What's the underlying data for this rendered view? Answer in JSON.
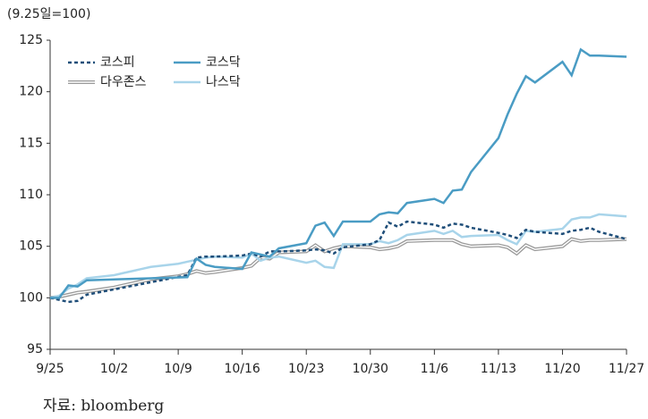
{
  "chart_data": {
    "type": "line",
    "unit_label": "(9.25일=100)",
    "source": "자료: bloomberg",
    "xlim": [
      0,
      63
    ],
    "xticks": [
      {
        "value": 0,
        "label": "9/25"
      },
      {
        "value": 7,
        "label": "10/2"
      },
      {
        "value": 14,
        "label": "10/9"
      },
      {
        "value": 21,
        "label": "10/16"
      },
      {
        "value": 28,
        "label": "10/23"
      },
      {
        "value": 35,
        "label": "10/30"
      },
      {
        "value": 42,
        "label": "11/6"
      },
      {
        "value": 49,
        "label": "11/13"
      },
      {
        "value": 56,
        "label": "11/20"
      },
      {
        "value": 63,
        "label": "11/27"
      }
    ],
    "ylim": [
      95,
      125
    ],
    "yticks": [
      95,
      100,
      105,
      110,
      115,
      120,
      125
    ],
    "series": [
      {
        "name": "코스피",
        "color": "#1f4e79",
        "style": "dotted",
        "x": [
          0,
          1,
          2,
          3,
          4,
          15,
          16,
          17,
          18,
          21,
          22,
          23,
          24,
          25,
          28,
          29,
          30,
          31,
          32,
          35,
          36,
          37,
          38,
          39,
          42,
          43,
          44,
          45,
          46,
          49,
          50,
          51,
          52,
          53,
          56,
          57,
          58,
          59,
          60,
          63
        ],
        "values": [
          100,
          99.8,
          99.6,
          99.7,
          100.3,
          102.2,
          103.9,
          104,
          104,
          104.1,
          104.3,
          104,
          104.5,
          104.5,
          104.6,
          104.7,
          104.6,
          104.3,
          104.9,
          105.2,
          105.6,
          107.3,
          106.9,
          107.4,
          107.1,
          106.8,
          107.2,
          107.1,
          106.8,
          106.3,
          106.1,
          105.8,
          106.6,
          106.4,
          106.2,
          106.5,
          106.6,
          106.8,
          106.4,
          105.7
        ]
      },
      {
        "name": "다우존스",
        "color": "#999999",
        "style": "double",
        "x": [
          0,
          1,
          2,
          3,
          4,
          7,
          8,
          9,
          10,
          11,
          14,
          15,
          16,
          17,
          18,
          21,
          22,
          23,
          24,
          25,
          28,
          29,
          30,
          31,
          32,
          35,
          36,
          37,
          38,
          39,
          42,
          43,
          44,
          45,
          46,
          49,
          50,
          51,
          52,
          53,
          56,
          57,
          58,
          59,
          60,
          63
        ],
        "values": [
          100,
          100.1,
          100.3,
          100.5,
          100.6,
          101,
          101.2,
          101.4,
          101.6,
          101.8,
          102.1,
          102.3,
          102.6,
          102.4,
          102.5,
          102.9,
          103.1,
          103.9,
          103.8,
          104.4,
          104.5,
          105.1,
          104.5,
          104.8,
          105,
          104.9,
          104.7,
          104.8,
          105,
          105.5,
          105.6,
          105.6,
          105.6,
          105.2,
          105,
          105.1,
          104.9,
          104.3,
          105.1,
          104.7,
          105,
          105.7,
          105.5,
          105.6,
          105.6,
          105.7
        ]
      },
      {
        "name": "코스닥",
        "color": "#4a9cc4",
        "style": "solid",
        "x": [
          0,
          1,
          2,
          3,
          4,
          15,
          16,
          17,
          18,
          21,
          22,
          23,
          24,
          25,
          28,
          29,
          30,
          31,
          32,
          35,
          36,
          37,
          38,
          39,
          42,
          43,
          44,
          45,
          46,
          49,
          50,
          51,
          52,
          53,
          56,
          57,
          58,
          59,
          60,
          63
        ],
        "values": [
          100,
          100,
          101.2,
          101.1,
          101.7,
          102,
          103.8,
          103.2,
          103,
          102.8,
          104.4,
          104.2,
          104,
          104.8,
          105.3,
          107,
          107.3,
          106,
          107.4,
          107.4,
          108.1,
          108.3,
          108.2,
          109.2,
          109.6,
          109.2,
          110.4,
          110.5,
          112.2,
          115.5,
          117.8,
          119.8,
          121.5,
          120.9,
          122.9,
          121.6,
          124.1,
          123.5,
          123.5,
          123.4
        ]
      },
      {
        "name": "나스닥",
        "color": "#a8d4ea",
        "style": "solid",
        "x": [
          0,
          1,
          2,
          3,
          4,
          7,
          8,
          9,
          10,
          11,
          14,
          15,
          16,
          17,
          18,
          21,
          22,
          23,
          24,
          25,
          28,
          29,
          30,
          31,
          32,
          35,
          36,
          37,
          38,
          39,
          42,
          43,
          44,
          45,
          46,
          49,
          50,
          51,
          52,
          53,
          56,
          57,
          58,
          59,
          60,
          63
        ],
        "values": [
          100,
          100.2,
          100.9,
          101.3,
          101.9,
          102.2,
          102.4,
          102.6,
          102.8,
          103,
          103.3,
          103.5,
          103.7,
          103.9,
          104,
          103.9,
          104.3,
          103.6,
          103.9,
          104,
          103.4,
          103.6,
          103,
          102.9,
          105.2,
          105.2,
          105.5,
          105.3,
          105.6,
          106.1,
          106.5,
          106.2,
          106.5,
          105.9,
          106,
          106.1,
          105.6,
          105.2,
          106.5,
          106.4,
          106.7,
          107.6,
          107.8,
          107.8,
          108.1,
          107.9
        ]
      }
    ]
  }
}
